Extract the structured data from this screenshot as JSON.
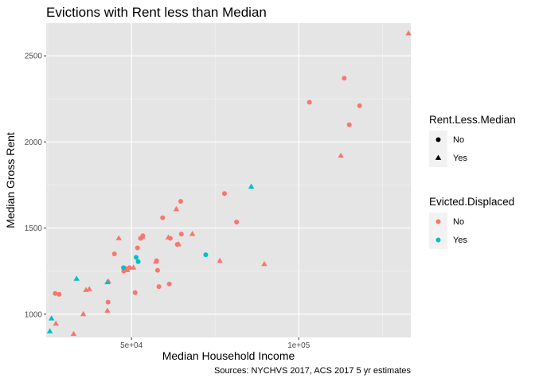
{
  "chart_data": {
    "type": "scatter",
    "title": "Evictions with Rent less than Median",
    "xlabel": "Median Household Income",
    "ylabel": "Median Gross Rent",
    "caption": "Sources: NYCHVS 2017, ACS 2017 5 yr estimates",
    "x_ticks": [
      {
        "value": 50000,
        "label": "5e+04"
      },
      {
        "value": 100000,
        "label": "1e+05"
      }
    ],
    "y_ticks": [
      {
        "value": 1000,
        "label": "1000"
      },
      {
        "value": 1500,
        "label": "1500"
      },
      {
        "value": 2000,
        "label": "2000"
      },
      {
        "value": 2500,
        "label": "2500"
      }
    ],
    "xlim": [
      24500,
      133500
    ],
    "ylim": [
      865,
      2690
    ],
    "grid": true,
    "background": "#E5E5E5",
    "legend_position": "right",
    "legends": [
      {
        "title": "Rent.Less.Median",
        "kind": "shape",
        "entries": [
          {
            "label": "No",
            "shape": "circle"
          },
          {
            "label": "Yes",
            "shape": "triangle"
          }
        ]
      },
      {
        "title": "Evicted.Displaced",
        "kind": "color",
        "entries": [
          {
            "label": "No",
            "color": "#F8766D"
          },
          {
            "label": "Yes",
            "color": "#00BFC4"
          }
        ]
      }
    ],
    "series": [
      {
        "rent_less_median": "No",
        "evicted_displaced": "No",
        "color": "#F8766D",
        "shape": "circle",
        "points": [
          [
            27200,
            1120
          ],
          [
            28400,
            1115
          ],
          [
            44900,
            1350
          ],
          [
            47700,
            1250
          ],
          [
            48200,
            1265
          ],
          [
            49400,
            1270
          ],
          [
            51800,
            1385
          ],
          [
            51100,
            1125
          ],
          [
            52700,
            1440
          ],
          [
            53400,
            1455
          ],
          [
            57500,
            1310
          ],
          [
            57800,
            1255
          ],
          [
            58200,
            1160
          ],
          [
            59300,
            1560
          ],
          [
            61300,
            1175
          ],
          [
            61600,
            1440
          ],
          [
            63700,
            1405
          ],
          [
            64700,
            1655
          ],
          [
            64900,
            1465
          ],
          [
            77800,
            1700
          ],
          [
            81400,
            1535
          ],
          [
            103200,
            2230
          ],
          [
            113600,
            2370
          ],
          [
            115100,
            2100
          ],
          [
            118200,
            2210
          ],
          [
            43000,
            1070
          ]
        ]
      },
      {
        "rent_less_median": "Yes",
        "evicted_displaced": "No",
        "color": "#F8766D",
        "shape": "triangle",
        "points": [
          [
            32700,
            885
          ],
          [
            27400,
            945
          ],
          [
            35600,
            1000
          ],
          [
            36400,
            1140
          ],
          [
            37400,
            1145
          ],
          [
            42800,
            1020
          ],
          [
            43100,
            1190
          ],
          [
            46200,
            1440
          ],
          [
            48700,
            1255
          ],
          [
            50600,
            1270
          ],
          [
            53200,
            1450
          ],
          [
            57300,
            1305
          ],
          [
            61000,
            1445
          ],
          [
            63400,
            1610
          ],
          [
            64100,
            1405
          ],
          [
            68200,
            1465
          ],
          [
            76400,
            1310
          ],
          [
            89700,
            1290
          ],
          [
            112600,
            1920
          ],
          [
            132800,
            2630
          ]
        ]
      },
      {
        "rent_less_median": "No",
        "evicted_displaced": "Yes",
        "color": "#00BFC4",
        "shape": "circle",
        "points": [
          [
            47600,
            1270
          ],
          [
            51400,
            1330
          ],
          [
            52000,
            1305
          ],
          [
            72200,
            1345
          ]
        ]
      },
      {
        "rent_less_median": "Yes",
        "evicted_displaced": "Yes",
        "color": "#00BFC4",
        "shape": "triangle",
        "points": [
          [
            25600,
            900
          ],
          [
            26100,
            975
          ],
          [
            33600,
            1205
          ],
          [
            42800,
            1185
          ],
          [
            85800,
            1740
          ]
        ]
      }
    ]
  }
}
